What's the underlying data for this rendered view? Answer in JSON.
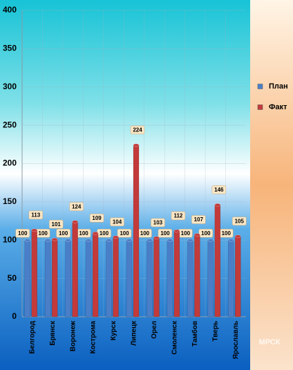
{
  "chart_data": {
    "type": "bar",
    "categories": [
      "Белгород",
      "Брянск",
      "Воронеж",
      "Кострома",
      "Курск",
      "Липецк",
      "Орел",
      "Смоленск",
      "Тамбов",
      "Тверь",
      "Ярославль"
    ],
    "series": [
      {
        "name": "План",
        "color": "#4a7fc8",
        "values": [
          100,
          100,
          100,
          100,
          100,
          100,
          100,
          100,
          100,
          100,
          100
        ]
      },
      {
        "name": "Факт",
        "color": "#c33a3a",
        "values": [
          113,
          101,
          124,
          109,
          104,
          224,
          103,
          112,
          107,
          146,
          105
        ]
      }
    ],
    "ylim": [
      0,
      400
    ],
    "yticks": [
      0,
      50,
      100,
      150,
      200,
      250,
      300,
      350,
      400
    ],
    "grid": true,
    "legend": "right",
    "logo": "МРСК"
  }
}
